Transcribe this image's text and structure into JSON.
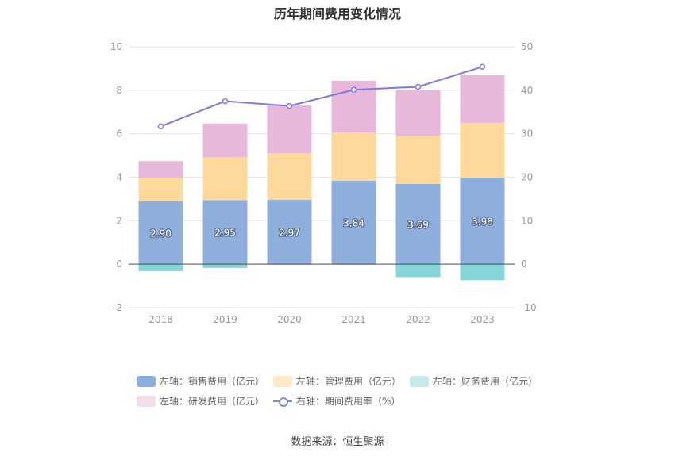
{
  "chart_data": {
    "type": "bar",
    "title": "历年期间费用变化情况",
    "categories": [
      "2018",
      "2019",
      "2020",
      "2021",
      "2022",
      "2023"
    ],
    "series": [
      {
        "name": "左轴：销售费用（亿元）",
        "axis": "left",
        "color": "#8eaedb",
        "values": [
          2.9,
          2.95,
          2.97,
          3.84,
          3.69,
          3.98
        ]
      },
      {
        "name": "左轴：管理费用（亿元）",
        "axis": "left",
        "color": "#ffd99b",
        "values": [
          1.08,
          1.97,
          2.13,
          2.22,
          2.2,
          2.52
        ]
      },
      {
        "name": "左轴：财务费用（亿元）",
        "axis": "left",
        "color": "#83d5d6",
        "values": [
          -0.32,
          -0.17,
          -0.02,
          -0.02,
          -0.59,
          -0.73
        ]
      },
      {
        "name": "左轴：研发费用（亿元）",
        "axis": "left",
        "color": "#e8b8da",
        "values": [
          0.76,
          1.55,
          2.2,
          2.37,
          2.12,
          2.19
        ]
      },
      {
        "name": "右轴：期间费用率（%）",
        "axis": "right",
        "type": "line",
        "color": "#7b7be6",
        "values": [
          31.7,
          37.5,
          36.4,
          40.1,
          40.8,
          45.4
        ]
      }
    ],
    "data_labels": [
      "2.90",
      "2.95",
      "2.97",
      "3.84",
      "3.69",
      "3.98"
    ],
    "left_axis": {
      "min": -2,
      "max": 10,
      "ticks": [
        "-2",
        "0",
        "2",
        "4",
        "6",
        "8",
        "10"
      ]
    },
    "right_axis": {
      "min": -10,
      "max": 50,
      "ticks": [
        "-10",
        "0",
        "10",
        "20",
        "30",
        "40",
        "50"
      ]
    },
    "grid": true,
    "legend_position": "bottom",
    "source": "数据来源：恒生聚源"
  }
}
